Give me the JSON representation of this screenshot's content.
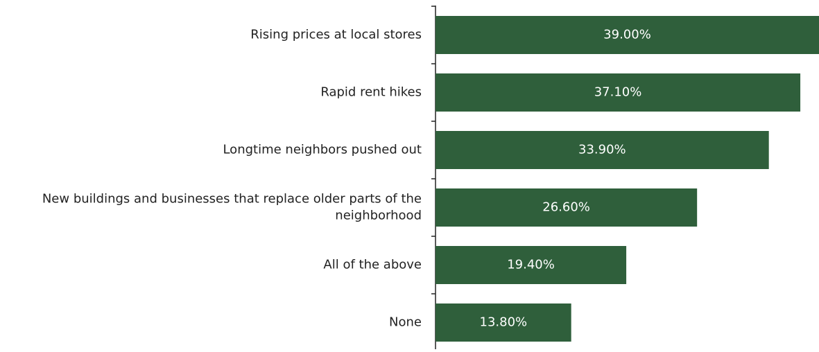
{
  "chart_data": {
    "type": "barh",
    "categories": [
      "Rising prices at local stores",
      "Rapid rent hikes",
      "Longtime neighbors pushed out",
      "New buildings and businesses that replace older parts of the neighborhood",
      "All of the above",
      "None"
    ],
    "values": [
      39.0,
      37.1,
      33.9,
      26.6,
      19.4,
      13.8
    ],
    "value_labels": [
      "39.00%",
      "37.10%",
      "33.90%",
      "26.60%",
      "19.40%",
      "13.80%"
    ],
    "color": "#2f5f3b",
    "xlim": [
      0,
      39
    ]
  }
}
